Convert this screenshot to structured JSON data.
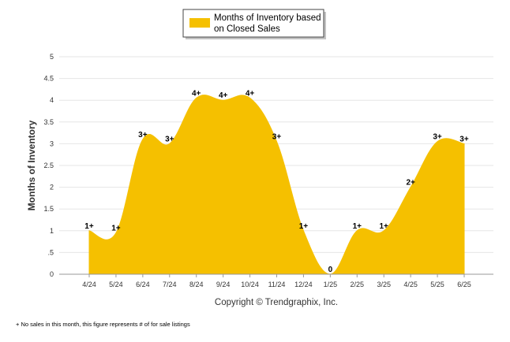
{
  "chart_data": {
    "type": "area",
    "legend": {
      "label_line1": "Months of Inventory based",
      "label_line2": "on Closed Sales",
      "placement": "top-center"
    },
    "ylabel": "Months of Inventory",
    "xlabel": "",
    "ylim": [
      0,
      5
    ],
    "yticks": [
      "0",
      ".5",
      "1",
      "1.5",
      "2",
      "2.5",
      "3",
      "3.5",
      "4",
      "4.5",
      "5"
    ],
    "grid": "horizontal",
    "categories": [
      "4/24",
      "5/24",
      "6/24",
      "7/24",
      "8/24",
      "9/24",
      "10/24",
      "11/24",
      "12/24",
      "1/25",
      "2/25",
      "3/25",
      "4/25",
      "5/25",
      "6/25"
    ],
    "series": [
      {
        "name": "Months of Inventory based on Closed Sales",
        "color": "#f5c000",
        "values": [
          1,
          0.95,
          3.1,
          3,
          4.05,
          4,
          4.05,
          3.05,
          1,
          0,
          1,
          1,
          2,
          3.05,
          3
        ],
        "labels": [
          "1+",
          "1+",
          "3+",
          "3+",
          "4+",
          "4+",
          "4+",
          "3+",
          "1+",
          "0",
          "1+",
          "1+",
          "2+",
          "3+",
          "3+"
        ]
      }
    ],
    "copyright": "Copyright © Trendgraphix, Inc.",
    "footnote": "+ No sales in this month, this figure represents # of for sale listings"
  }
}
